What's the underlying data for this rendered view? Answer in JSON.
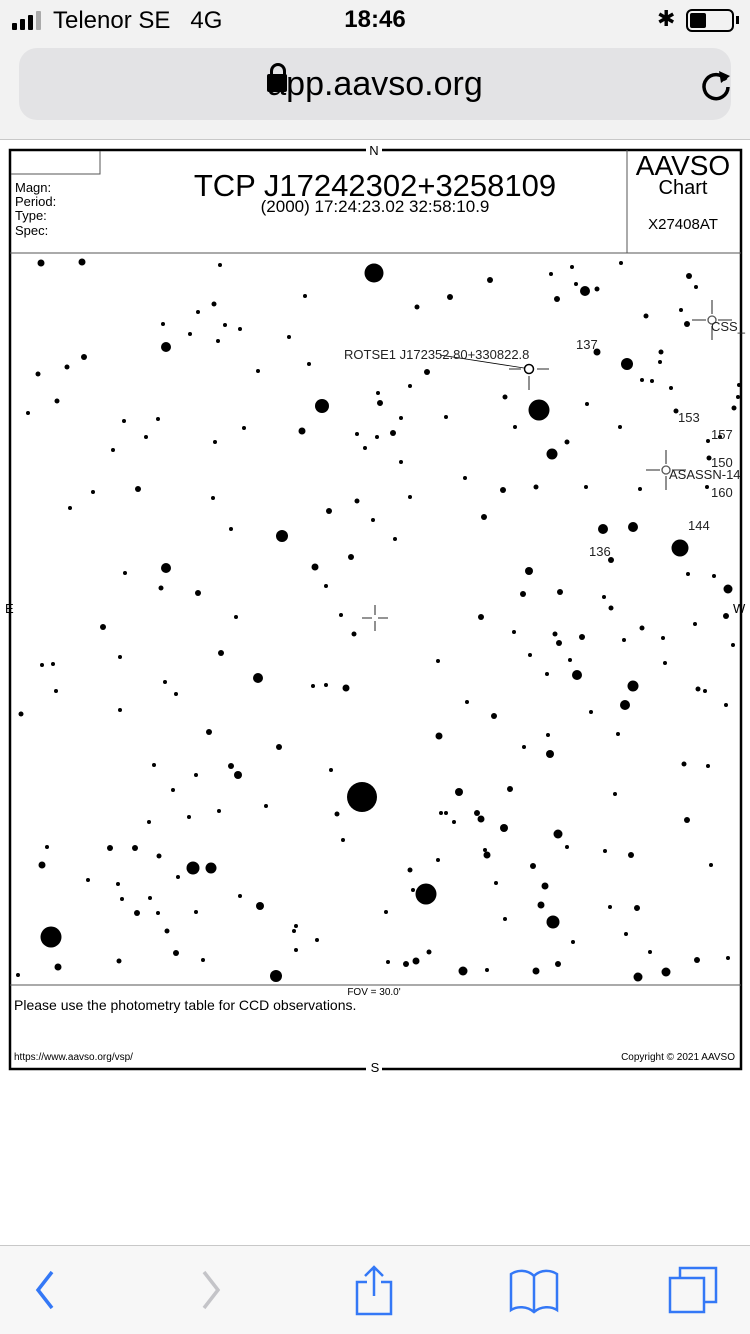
{
  "status_bar": {
    "carrier": "Telenor SE",
    "network": "4G",
    "time": "18:46",
    "bluetooth_icon": "bluetooth-icon",
    "battery_level": 0.4
  },
  "browser": {
    "url": "app.aavso.org",
    "lock_icon": "lock-icon",
    "reload_icon": "reload-icon",
    "accent_color": "#3478f6"
  },
  "chart": {
    "compass": {
      "n": "N",
      "s": "S",
      "e": "E",
      "w": "W"
    },
    "info_labels": [
      "Magn:",
      "Period:",
      "Type:",
      "Spec:"
    ],
    "title": "TCP J17242302+3258109",
    "coords": "(2000) 17:24:23.02  32:58:10.9",
    "brand": "AAVSO",
    "brand_sub": "Chart",
    "chart_id": "X27408AT",
    "labels": {
      "rotse": "ROTSE1 J172352.80+330822.8",
      "css": "CSS_",
      "asassn": "ASASSN-14",
      "c137": "137",
      "c153": "153",
      "c157": "157",
      "c150": "150",
      "c160": "160",
      "c144": "144",
      "c136": "136"
    },
    "fov": "FOV = 30.0'",
    "note": "Please use the photometry table for CCD observations.",
    "footer_url": "https://www.aavso.org/vsp/",
    "copyright": "Copyright © 2021 AAVSO"
  },
  "toolbar": {
    "items": [
      "back",
      "forward",
      "share",
      "bookmarks",
      "tabs"
    ]
  }
}
